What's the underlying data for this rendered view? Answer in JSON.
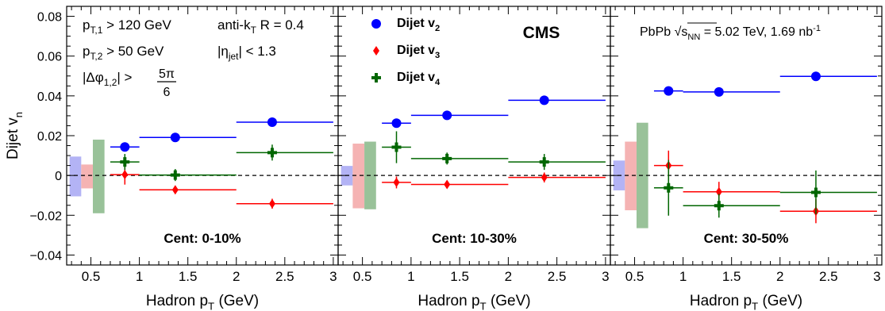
{
  "chart_data": {
    "type": "scatter",
    "ylabel": "Dijet v_n",
    "ylim": [
      -0.045,
      0.085
    ],
    "xlim": [
      0.25,
      3.05
    ],
    "grid": false,
    "y_ticks": [
      "0.08",
      "0.06",
      "0.04",
      "0.02",
      "0",
      "−0.02",
      "−0.04"
    ],
    "x_ticks": [
      "0.5",
      "1",
      "1.5",
      "2",
      "2.5",
      "3"
    ],
    "legend": {
      "placement": "top-left of middle panel",
      "entries": [
        {
          "label": "Dijet v",
          "sub": "2",
          "series": "v2"
        },
        {
          "label": "Dijet v",
          "sub": "3",
          "series": "v3"
        },
        {
          "label": "Dijet v",
          "sub": "4",
          "series": "v4"
        }
      ]
    },
    "cms_label": "CMS",
    "lumi_label": {
      "pre": "PbPb ",
      "sqrt": "s",
      "sub": "NN",
      "post": " = 5.02 TeV, 1.69 nb",
      "sup": "-1"
    },
    "cuts": {
      "pt1": {
        "pre": "p",
        "sub": "T,1",
        "post": " > 120 GeV"
      },
      "pt2": {
        "pre": "p",
        "sub": "T,2",
        "post": " > 50 GeV"
      },
      "dphi": {
        "pre": "|Δφ",
        "sub": "1,2",
        "post": "| > ",
        "num": "5π",
        "den": "6"
      },
      "algo": {
        "pre": "anti-k",
        "sub": "T",
        "post": " R = 0.4"
      },
      "eta": {
        "pre": "|η",
        "sub": "jet",
        "post": "| < 1.3"
      }
    },
    "xlabel": {
      "pre": "Hadron p",
      "sub": "T",
      "post": " (GeV)"
    },
    "series_styles": {
      "v2": {
        "color": "#0000ff",
        "marker": "circle"
      },
      "v3": {
        "color": "#ff0000",
        "marker": "diamond"
      },
      "v4": {
        "color": "#006600",
        "marker": "cross"
      }
    },
    "syst_colors": {
      "v2": "#b3b3f5",
      "v3": "#f5b3b3",
      "v4": "#99c299"
    },
    "panels": [
      {
        "label": "Cent: 0-10%",
        "points": {
          "v2": [
            {
              "x": 0.85,
              "xlo": 0.7,
              "xhi": 1.0,
              "y": 0.0143,
              "err": 0.002
            },
            {
              "x": 1.37,
              "xlo": 1.0,
              "xhi": 2.0,
              "y": 0.0191,
              "err": 0.0015
            },
            {
              "x": 2.37,
              "xlo": 2.0,
              "xhi": 3.0,
              "y": 0.0268,
              "err": 0.0015
            }
          ],
          "v3": [
            {
              "x": 0.85,
              "xlo": 0.7,
              "xhi": 1.0,
              "y": 0.0004,
              "err": 0.005
            },
            {
              "x": 1.37,
              "xlo": 1.0,
              "xhi": 2.0,
              "y": -0.0072,
              "err": 0.002
            },
            {
              "x": 2.37,
              "xlo": 2.0,
              "xhi": 3.0,
              "y": -0.0142,
              "err": 0.0025
            }
          ],
          "v4": [
            {
              "x": 0.85,
              "xlo": 0.7,
              "xhi": 1.0,
              "y": 0.0068,
              "err": 0.004
            },
            {
              "x": 1.37,
              "xlo": 1.0,
              "xhi": 2.0,
              "y": 0.0002,
              "err": 0.003
            },
            {
              "x": 2.37,
              "xlo": 2.0,
              "xhi": 3.0,
              "y": 0.0115,
              "err": 0.004
            }
          ]
        },
        "syst": {
          "v2": {
            "lo": -0.0105,
            "hi": 0.0095
          },
          "v3": {
            "lo": -0.0065,
            "hi": 0.0055
          },
          "v4": {
            "lo": -0.019,
            "hi": 0.018
          }
        }
      },
      {
        "label": "Cent: 10-30%",
        "points": {
          "v2": [
            {
              "x": 0.85,
              "xlo": 0.7,
              "xhi": 1.0,
              "y": 0.0263,
              "err": 0.0015
            },
            {
              "x": 1.37,
              "xlo": 1.0,
              "xhi": 2.0,
              "y": 0.0302,
              "err": 0.0012
            },
            {
              "x": 2.37,
              "xlo": 2.0,
              "xhi": 3.0,
              "y": 0.0378,
              "err": 0.0012
            }
          ],
          "v3": [
            {
              "x": 0.85,
              "xlo": 0.7,
              "xhi": 1.0,
              "y": -0.0035,
              "err": 0.003
            },
            {
              "x": 1.37,
              "xlo": 1.0,
              "xhi": 2.0,
              "y": -0.0045,
              "err": 0.0015
            },
            {
              "x": 2.37,
              "xlo": 2.0,
              "xhi": 3.0,
              "y": -0.001,
              "err": 0.0025
            }
          ],
          "v4": [
            {
              "x": 0.85,
              "xlo": 0.7,
              "xhi": 1.0,
              "y": 0.0142,
              "err": 0.008
            },
            {
              "x": 1.37,
              "xlo": 1.0,
              "xhi": 2.0,
              "y": 0.0085,
              "err": 0.003
            },
            {
              "x": 2.37,
              "xlo": 2.0,
              "xhi": 3.0,
              "y": 0.0068,
              "err": 0.004
            }
          ]
        },
        "syst": {
          "v2": {
            "lo": -0.005,
            "hi": 0.0048
          },
          "v3": {
            "lo": -0.0165,
            "hi": 0.016
          },
          "v4": {
            "lo": -0.017,
            "hi": 0.017
          }
        }
      },
      {
        "label": "Cent: 30-50%",
        "points": {
          "v2": [
            {
              "x": 0.85,
              "xlo": 0.7,
              "xhi": 1.0,
              "y": 0.0425,
              "err": 0.0018
            },
            {
              "x": 1.37,
              "xlo": 1.0,
              "xhi": 2.0,
              "y": 0.042,
              "err": 0.0012
            },
            {
              "x": 2.37,
              "xlo": 2.0,
              "xhi": 3.0,
              "y": 0.0498,
              "err": 0.0018
            }
          ],
          "v3": [
            {
              "x": 0.85,
              "xlo": 0.7,
              "xhi": 1.0,
              "y": 0.005,
              "err": 0.0075
            },
            {
              "x": 1.37,
              "xlo": 1.0,
              "xhi": 2.0,
              "y": -0.0082,
              "err": 0.005
            },
            {
              "x": 2.37,
              "xlo": 2.0,
              "xhi": 3.0,
              "y": -0.018,
              "err": 0.006
            }
          ],
          "v4": [
            {
              "x": 0.85,
              "xlo": 0.7,
              "xhi": 1.0,
              "y": -0.0062,
              "err": 0.014
            },
            {
              "x": 1.37,
              "xlo": 1.0,
              "xhi": 2.0,
              "y": -0.0152,
              "err": 0.006
            },
            {
              "x": 2.37,
              "xlo": 2.0,
              "xhi": 3.0,
              "y": -0.0085,
              "err": 0.011
            }
          ]
        },
        "syst": {
          "v2": {
            "lo": -0.0075,
            "hi": 0.0075
          },
          "v3": {
            "lo": -0.0175,
            "hi": 0.017
          },
          "v4": {
            "lo": -0.0265,
            "hi": 0.0265
          }
        }
      }
    ]
  }
}
